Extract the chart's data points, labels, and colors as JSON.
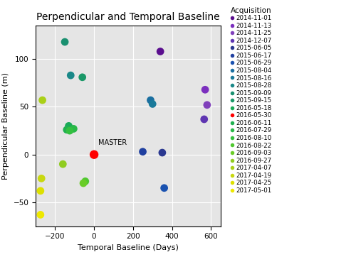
{
  "title": "Perpendicular and Temporal Baseline",
  "xlabel": "Temporal Baseline (Days)",
  "ylabel": "Perpendicular Baseline (m)",
  "legend_title": "Acquisition",
  "background_color": "#e5e5e5",
  "xlim": [
    -300,
    650
  ],
  "ylim": [
    -75,
    135
  ],
  "xticks": [
    -200,
    0,
    200,
    400,
    600
  ],
  "yticks": [
    -50,
    0,
    50,
    100
  ],
  "points": [
    {
      "date": "2014-11-01",
      "temporal": 340,
      "perp": 108,
      "color": "#5a0e8e"
    },
    {
      "date": "2014-11-13",
      "temporal": 570,
      "perp": 68,
      "color": "#7b2fbe"
    },
    {
      "date": "2014-11-25",
      "temporal": 580,
      "perp": 52,
      "color": "#8040bb"
    },
    {
      "date": "2014-12-07",
      "temporal": 565,
      "perp": 37,
      "color": "#5e35b1"
    },
    {
      "date": "2015-06-05",
      "temporal": 350,
      "perp": 2,
      "color": "#2a3890"
    },
    {
      "date": "2015-06-17",
      "temporal": 250,
      "perp": 3,
      "color": "#2040a0"
    },
    {
      "date": "2015-06-29",
      "temporal": 360,
      "perp": -35,
      "color": "#1a52b0"
    },
    {
      "date": "2015-08-04",
      "temporal": 290,
      "perp": 57,
      "color": "#1a6fa0"
    },
    {
      "date": "2015-08-16",
      "temporal": 300,
      "perp": 53,
      "color": "#1a7a9a"
    },
    {
      "date": "2015-08-28",
      "temporal": -120,
      "perp": 83,
      "color": "#1a8888"
    },
    {
      "date": "2015-09-09",
      "temporal": -150,
      "perp": 118,
      "color": "#1a9070"
    },
    {
      "date": "2015-09-15",
      "temporal": -60,
      "perp": 81,
      "color": "#1a9868"
    },
    {
      "date": "2016-05-18",
      "temporal": -130,
      "perp": 30,
      "color": "#1aaa58"
    },
    {
      "date": "2016-05-30",
      "temporal": 0,
      "perp": 0,
      "color": "#ff0000"
    },
    {
      "date": "2016-06-11",
      "temporal": -140,
      "perp": 26,
      "color": "#20b050"
    },
    {
      "date": "2016-07-29",
      "temporal": -105,
      "perp": 27,
      "color": "#28b848"
    },
    {
      "date": "2016-08-10",
      "temporal": -125,
      "perp": 25,
      "color": "#34c040"
    },
    {
      "date": "2016-08-22",
      "temporal": -45,
      "perp": -28,
      "color": "#50c830"
    },
    {
      "date": "2016-09-03",
      "temporal": -55,
      "perp": -30,
      "color": "#6acc28"
    },
    {
      "date": "2016-09-27",
      "temporal": -160,
      "perp": -10,
      "color": "#90cc20"
    },
    {
      "date": "2017-04-07",
      "temporal": -265,
      "perp": 57,
      "color": "#aad018"
    },
    {
      "date": "2017-04-19",
      "temporal": -270,
      "perp": -25,
      "color": "#c8d810"
    },
    {
      "date": "2017-04-25",
      "temporal": -275,
      "perp": -38,
      "color": "#dde000"
    },
    {
      "date": "2017-05-01",
      "temporal": -275,
      "perp": -63,
      "color": "#eee800"
    }
  ],
  "master_label": "MASTER",
  "master_temporal": 0,
  "master_perp": 0,
  "dot_size": 60,
  "master_size": 80,
  "title_fontsize": 10,
  "axis_fontsize": 8,
  "tick_fontsize": 7.5,
  "legend_fontsize": 6.2,
  "legend_title_fontsize": 7.5
}
